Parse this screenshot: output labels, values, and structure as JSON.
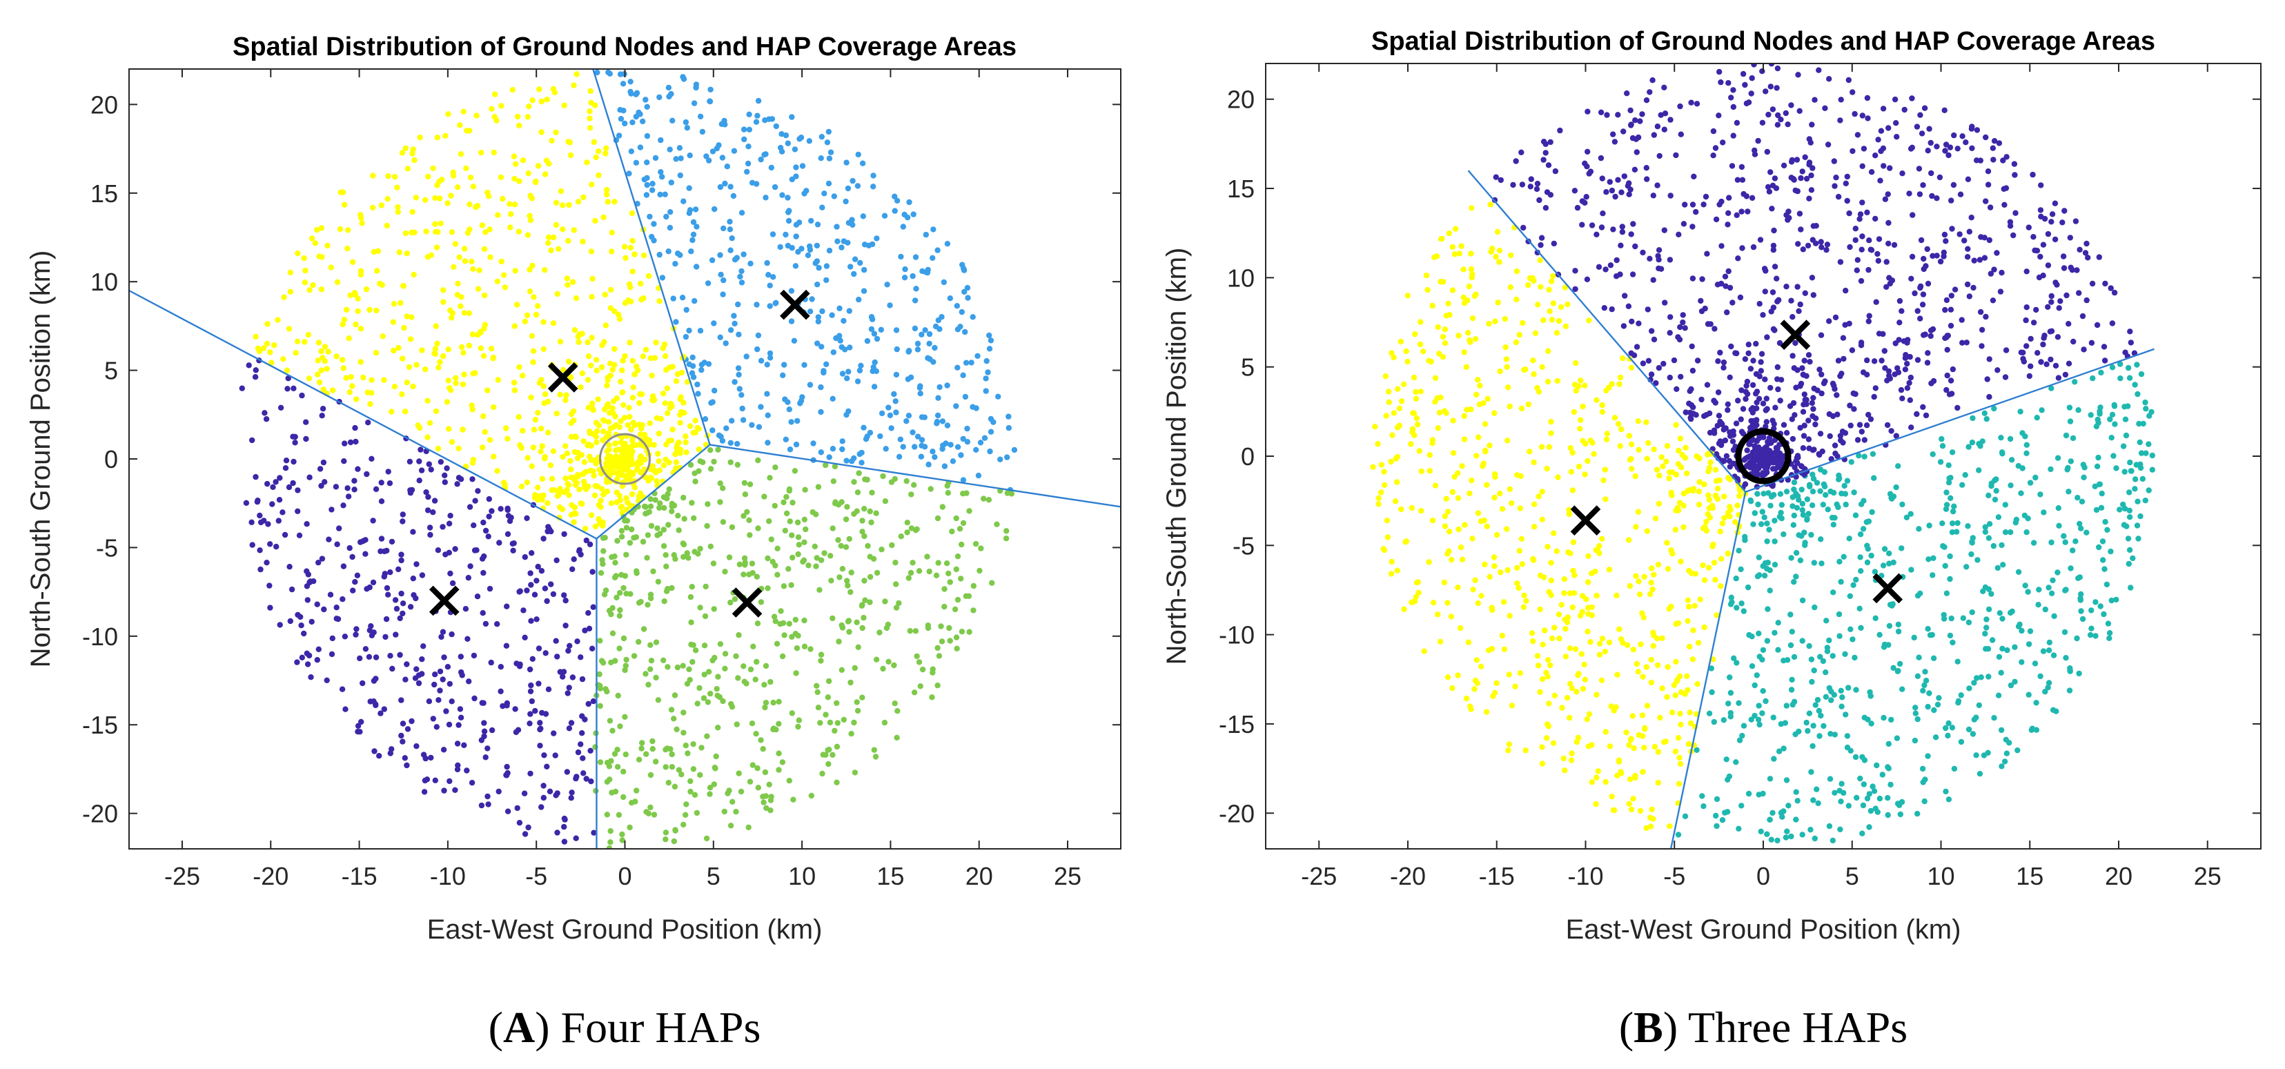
{
  "chart_data": [
    {
      "type": "scatter",
      "panel": "A",
      "title": "Spatial Distribution of Ground Nodes and HAP Coverage Areas",
      "xlabel": "East-West Ground Position (km)",
      "ylabel": "North-South Ground Position (km)",
      "xlim": [
        -28,
        28
      ],
      "ylim": [
        -22,
        22
      ],
      "xticks": [
        -25,
        -20,
        -15,
        -10,
        -5,
        0,
        5,
        10,
        15,
        20,
        25
      ],
      "yticks": [
        -20,
        -15,
        -10,
        -5,
        0,
        5,
        10,
        15,
        20
      ],
      "xtick_labels": [
        "-25",
        "-20",
        "-15",
        "-10",
        "-5",
        "0",
        "5",
        "10",
        "15",
        "20",
        "25"
      ],
      "ytick_labels": [
        "-20",
        "-15",
        "-10",
        "-5",
        "0",
        "5",
        "10",
        "15",
        "20"
      ],
      "ground_nodes": {
        "region_radius_km": 22,
        "total_points": 2600,
        "center_dense_radius_km": 6
      },
      "haps": [
        {
          "x": -3.5,
          "y": 4.6,
          "color": "#ffff00"
        },
        {
          "x": 9.6,
          "y": 8.7,
          "color": "#3b9ee8"
        },
        {
          "x": -10.2,
          "y": -8.0,
          "color": "#3d26a8"
        },
        {
          "x": 6.9,
          "y": -8.1,
          "color": "#7ec94a"
        }
      ],
      "ground_station": {
        "x": 0,
        "y": 0,
        "radius_km": 1.4,
        "style": "thin"
      },
      "boundaries": [
        {
          "x1": -28,
          "y1": 9.5,
          "x2": -1.6,
          "y2": -4.5
        },
        {
          "x1": -1.6,
          "y1": -4.5,
          "x2": -1.6,
          "y2": -22
        },
        {
          "x1": -1.6,
          "y1": -4.5,
          "x2": 4.8,
          "y2": 0.8
        },
        {
          "x1": 4.8,
          "y1": 0.8,
          "x2": -1.8,
          "y2": 22
        },
        {
          "x1": 4.8,
          "y1": 0.8,
          "x2": 28,
          "y2": -2.7
        }
      ],
      "caption": {
        "letter": "A",
        "text": "Four HAPs"
      }
    },
    {
      "type": "scatter",
      "panel": "B",
      "title": "Spatial Distribution of Ground Nodes and HAP Coverage Areas",
      "xlabel": "East-West Ground Position (km)",
      "ylabel": "North-South Ground Position (km)",
      "xlim": [
        -28,
        28
      ],
      "ylim": [
        -22,
        22
      ],
      "xticks": [
        -25,
        -20,
        -15,
        -10,
        -5,
        0,
        5,
        10,
        15,
        20,
        25
      ],
      "yticks": [
        -20,
        -15,
        -10,
        -5,
        0,
        5,
        10,
        15,
        20
      ],
      "xtick_labels": [
        "-25",
        "-20",
        "-15",
        "-10",
        "-5",
        "0",
        "5",
        "10",
        "15",
        "20",
        "25"
      ],
      "ytick_labels": [
        "-20",
        "-15",
        "-10",
        "-5",
        "0",
        "5",
        "10",
        "15",
        "20"
      ],
      "ground_nodes": {
        "region_radius_km": 22,
        "total_points": 2600,
        "center_dense_radius_km": 6
      },
      "haps": [
        {
          "x": 1.8,
          "y": 6.8,
          "color": "#3d26a8"
        },
        {
          "x": -10.0,
          "y": -3.6,
          "color": "#ffff00"
        },
        {
          "x": 7.0,
          "y": -7.4,
          "color": "#1fb8b0"
        }
      ],
      "ground_station": {
        "x": 0,
        "y": 0,
        "radius_km": 1.4,
        "style": "thick"
      },
      "boundaries": [
        {
          "x1": -1.0,
          "y1": -2.0,
          "x2": -16.6,
          "y2": 16.0
        },
        {
          "x1": -1.0,
          "y1": -2.0,
          "x2": -5.2,
          "y2": -22
        },
        {
          "x1": -1.0,
          "y1": -2.0,
          "x2": 22.0,
          "y2": 6.0
        }
      ],
      "caption": {
        "letter": "B",
        "text": "Three HAPs"
      }
    }
  ]
}
